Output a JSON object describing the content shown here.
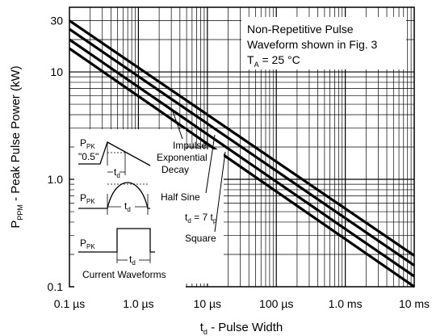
{
  "chart_data": {
    "type": "line",
    "x_scale": "log",
    "y_scale": "log",
    "xlim": [
      1e-07,
      0.01
    ],
    "ylim": [
      0.1,
      40
    ],
    "grid": true,
    "x_ticks": [
      {
        "value": 1e-07,
        "label": "0.1 µs"
      },
      {
        "value": 1e-06,
        "label": "1.0 µs"
      },
      {
        "value": 1e-05,
        "label": "10 µs"
      },
      {
        "value": 0.0001,
        "label": "100 µs"
      },
      {
        "value": 0.001,
        "label": "1.0 ms"
      },
      {
        "value": 0.01,
        "label": "10 ms"
      }
    ],
    "y_ticks": [
      {
        "value": 0.1,
        "label": "0.1"
      },
      {
        "value": 1,
        "label": "1.0"
      },
      {
        "value": 10,
        "label": "10"
      },
      {
        "value": 30,
        "label": "30"
      }
    ],
    "xlabel": {
      "main": "t",
      "sub": "d",
      "rest": " - Pulse Width"
    },
    "ylabel": {
      "main": "P",
      "sub": "PPM",
      "rest": " - Peak Pulse Power (kW)"
    },
    "series": [
      {
        "name": "Impulse Exponential Decay",
        "points": [
          [
            1e-07,
            30
          ],
          [
            0.01,
            0.195
          ]
        ]
      },
      {
        "name": "Half Sine",
        "points": [
          [
            1e-07,
            25
          ],
          [
            0.01,
            0.158
          ]
        ]
      },
      {
        "name": "Square",
        "points": [
          [
            1e-07,
            20
          ],
          [
            0.01,
            0.125
          ]
        ]
      },
      {
        "points": [
          [
            1e-07,
            16.5
          ],
          [
            0.01,
            0.1
          ]
        ]
      }
    ],
    "annotations": {
      "conditions": [
        "Non-Repetitive Pulse",
        "Waveform shown in Fig. 3"
      ],
      "ta_main": "T",
      "ta_sub": "A",
      "ta_rest": " = 25 °C",
      "impulse": [
        "Impulse",
        "Exponential",
        "Decay"
      ],
      "half_sine": "Half Sine",
      "square": "Square",
      "td_eq_main": "t",
      "td_eq_sub1": "d",
      "td_eq_mid": " = 7 t",
      "td_eq_sub2": "p",
      "inset_title": "Current Waveforms",
      "ppk_main": "P",
      "ppk_sub": "PK",
      "half_label": "\"0.5\"",
      "td_main": "t",
      "td_sub": "d"
    }
  }
}
